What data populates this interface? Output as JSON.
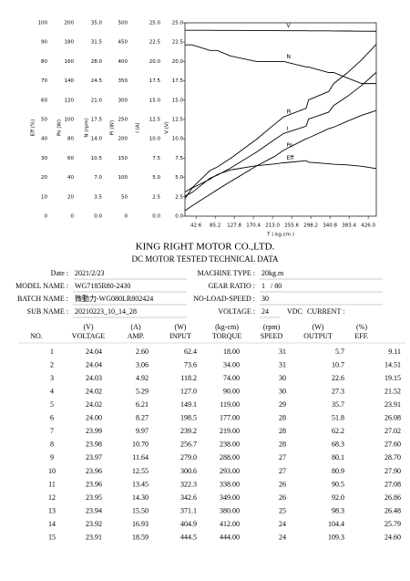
{
  "chart_data": {
    "type": "line",
    "x_label": "T ( kg.cm )",
    "x": [
      18,
      34,
      74,
      90,
      119,
      177,
      219,
      238,
      288,
      293,
      338,
      349,
      380,
      412,
      444
    ],
    "xlim": [
      18,
      444
    ],
    "xticks": [
      42.6,
      85.2,
      127.8,
      170.4,
      {
        "value": 213,
        "label": "213.0"
      },
      255.6,
      298.2,
      340.8,
      383.4,
      {
        "value": 426,
        "label": "426.0"
      }
    ],
    "y_axes": [
      {
        "label": "Eff (%)",
        "ylim": [
          0,
          100
        ],
        "yticks": [
          0,
          10,
          20,
          30,
          40,
          50,
          60,
          70,
          80,
          90,
          100
        ]
      },
      {
        "label": "Po (W)",
        "ylim": [
          0,
          200
        ],
        "yticks": [
          0,
          20,
          40,
          60,
          80,
          100,
          120,
          140,
          160,
          180,
          200
        ]
      },
      {
        "label": "N (rpm)",
        "ylim": [
          0,
          35
        ],
        "yticks": [
          {
            "value": 0,
            "label": "0.0"
          },
          3.5,
          {
            "value": 7,
            "label": "7.0"
          },
          10.5,
          {
            "value": 14,
            "label": "14.0"
          },
          17.5,
          {
            "value": 21,
            "label": "21.0"
          },
          24.5,
          {
            "value": 28,
            "label": "28.0"
          },
          31.5,
          {
            "value": 35,
            "label": "35.0"
          }
        ]
      },
      {
        "label": "Pi (W)",
        "ylim": [
          0,
          500
        ],
        "yticks": [
          0,
          50,
          100,
          150,
          200,
          250,
          300,
          350,
          400,
          450,
          500
        ]
      },
      {
        "label": "I (A)",
        "ylim": [
          0,
          25
        ],
        "yticks": [
          {
            "value": 0,
            "label": "0.0"
          },
          2.5,
          {
            "value": 5,
            "label": "5.0"
          },
          7.5,
          {
            "value": 10,
            "label": "10.0"
          },
          12.5,
          {
            "value": 15,
            "label": "15.0"
          },
          17.5,
          {
            "value": 20,
            "label": "20.0"
          },
          22.5,
          {
            "value": 25,
            "label": "25.0"
          }
        ]
      },
      {
        "label": "V (V)",
        "ylim": [
          0,
          25
        ],
        "yticks": [
          {
            "value": 0,
            "label": "0.0"
          },
          2.5,
          {
            "value": 5,
            "label": "5.0"
          },
          7.5,
          {
            "value": 10,
            "label": "10.0"
          },
          12.5,
          {
            "value": 15,
            "label": "15.0"
          },
          17.5,
          {
            "value": 20,
            "label": "20.0"
          },
          22.5,
          {
            "value": 25,
            "label": "25.0"
          }
        ]
      }
    ],
    "series": [
      {
        "name": "V",
        "axis": "V (V)",
        "color": "#000000",
        "values": [
          24.04,
          24.04,
          24.03,
          24.02,
          24.02,
          24.0,
          23.99,
          23.98,
          23.97,
          23.96,
          23.96,
          23.95,
          23.94,
          23.92,
          23.91
        ]
      },
      {
        "name": "N",
        "axis": "N (rpm)",
        "color": "#000000",
        "values": [
          31,
          31,
          30,
          30,
          29,
          28,
          28,
          28,
          27,
          27,
          26,
          26,
          25,
          24,
          24
        ]
      },
      {
        "name": "Pi",
        "axis": "Pi (W)",
        "color": "#000000",
        "values": [
          62.4,
          73.6,
          118.2,
          127.0,
          149.1,
          198.5,
          239.2,
          256.7,
          279.0,
          300.6,
          322.3,
          342.6,
          371.1,
          404.9,
          444.5
        ]
      },
      {
        "name": "I",
        "axis": "I (A)",
        "color": "#000000",
        "values": [
          2.6,
          3.06,
          4.92,
          5.29,
          6.21,
          8.27,
          9.97,
          10.7,
          11.64,
          12.55,
          13.45,
          14.3,
          15.5,
          16.93,
          18.59
        ]
      },
      {
        "name": "Po",
        "axis": "Po (W)",
        "color": "#000000",
        "values": [
          5.7,
          10.7,
          22.6,
          27.3,
          35.7,
          51.8,
          62.2,
          68.3,
          80.1,
          80.9,
          90.5,
          92.0,
          98.3,
          104.4,
          109.3
        ]
      },
      {
        "name": "Eff",
        "axis": "Eff (%)",
        "color": "#000000",
        "values": [
          9.11,
          14.51,
          19.15,
          21.52,
          23.91,
          26.08,
          27.02,
          27.6,
          28.7,
          27.9,
          27.08,
          26.86,
          26.48,
          25.79,
          24.6
        ]
      }
    ]
  },
  "document": {
    "title": "KING RIGHT MOTOR CO.,LTD.",
    "subtitle": "DC MOTOR TESTED TECHNICAL DATA",
    "left_fields": [
      {
        "label": "Date :",
        "value": "2021/2/23"
      },
      {
        "label": "MODEL NAME :",
        "value": "WG7185R80-2430"
      },
      {
        "label": "BATCH NAME :",
        "value": "微動力-WG080LR802424"
      },
      {
        "label": "SUB NAME :",
        "value": "20210223_10_14_28"
      }
    ],
    "right_fields": [
      {
        "label": "MACHINE TYPE :",
        "value": "20kg.m"
      },
      {
        "label": "GEAR RATIO :",
        "value": "1   / 80"
      },
      {
        "label": "NO-LOAD-SPEED :",
        "value": "30"
      },
      {
        "label": "VOLTAGE :",
        "value": "24",
        "unit": "VDC",
        "extra": "CURRENT :"
      }
    ]
  },
  "table": {
    "units": [
      "(V)",
      "(A)",
      "(W)",
      "(kg-cm)",
      "(rpm)",
      "(W)",
      "(%)"
    ],
    "headers": [
      "NO.",
      "VOLTAGE",
      "AMP.",
      "INPUT",
      "TORQUE",
      "SPEED",
      "OUTPUT",
      "EFF."
    ],
    "rows": [
      [
        "1",
        "24.04",
        "2.60",
        "62.4",
        "18.00",
        "31",
        "5.7",
        "9.11"
      ],
      [
        "2",
        "24.04",
        "3.06",
        "73.6",
        "34.00",
        "31",
        "10.7",
        "14.51"
      ],
      [
        "3",
        "24.03",
        "4.92",
        "118.2",
        "74.00",
        "30",
        "22.6",
        "19.15"
      ],
      [
        "4",
        "24.02",
        "5.29",
        "127.0",
        "90.00",
        "30",
        "27.3",
        "21.52"
      ],
      [
        "5",
        "24.02",
        "6.21",
        "149.1",
        "119.00",
        "29",
        "35.7",
        "23.91"
      ],
      [
        "6",
        "24.00",
        "8.27",
        "198.5",
        "177.00",
        "28",
        "51.8",
        "26.08"
      ],
      [
        "7",
        "23.99",
        "9.97",
        "239.2",
        "219.00",
        "28",
        "62.2",
        "27.02"
      ],
      [
        "8",
        "23.98",
        "10.70",
        "256.7",
        "238.00",
        "28",
        "68.3",
        "27.60"
      ],
      [
        "9",
        "23.97",
        "11.64",
        "279.0",
        "288.00",
        "27",
        "80.1",
        "28.70"
      ],
      [
        "10",
        "23.96",
        "12.55",
        "300.6",
        "293.00",
        "27",
        "80.9",
        "27.90"
      ],
      [
        "11",
        "23.96",
        "13.45",
        "322.3",
        "338.00",
        "26",
        "90.5",
        "27.08"
      ],
      [
        "12",
        "23.95",
        "14.30",
        "342.6",
        "349.00",
        "26",
        "92.0",
        "26.86"
      ],
      [
        "13",
        "23.94",
        "15.50",
        "371.1",
        "380.00",
        "25",
        "98.3",
        "26.48"
      ],
      [
        "14",
        "23.92",
        "16.93",
        "404.9",
        "412.00",
        "24",
        "104.4",
        "25.79"
      ],
      [
        "15",
        "23.91",
        "18.59",
        "444.5",
        "444.00",
        "24",
        "109.3",
        "24.60"
      ]
    ]
  }
}
